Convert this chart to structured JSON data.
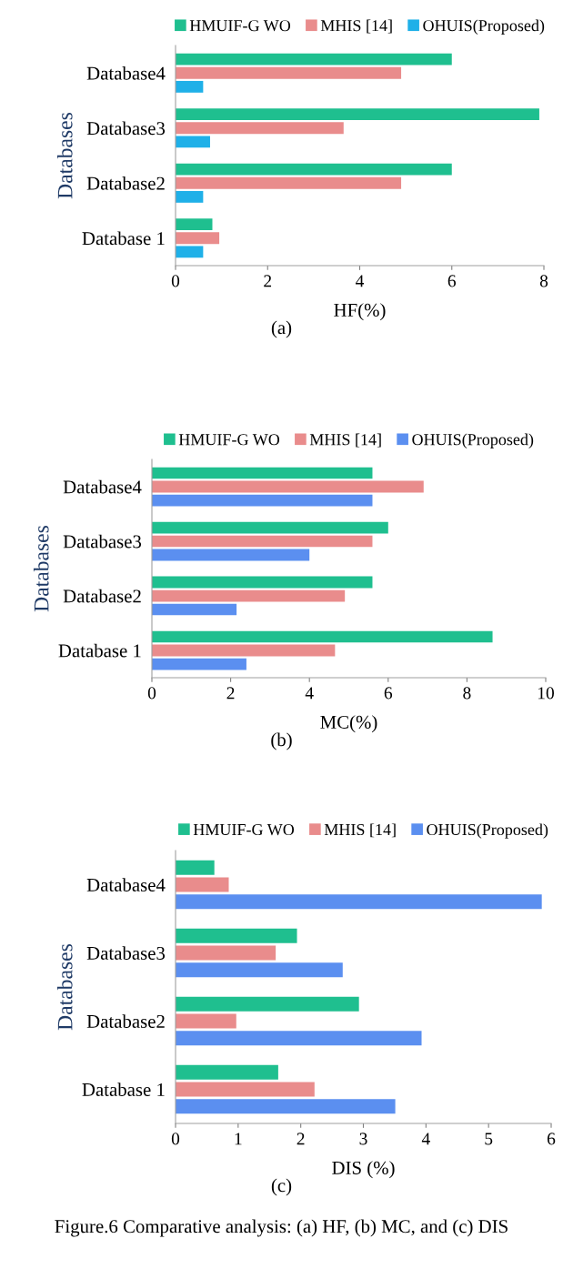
{
  "chart_data": [
    {
      "type": "bar",
      "orientation": "horizontal",
      "xlabel": "HF(%)",
      "ylabel": "Databases",
      "categories": [
        "Database4",
        "Database3",
        "Database2",
        "Database 1"
      ],
      "series": [
        {
          "name": "HMUIF-G WO",
          "color": "#1fbf8f",
          "values": [
            6.0,
            7.9,
            6.0,
            0.8
          ]
        },
        {
          "name": "MHIS [14]",
          "color": "#e98c8c",
          "values": [
            4.9,
            3.65,
            4.9,
            0.95
          ]
        },
        {
          "name": "OHUIS(Proposed)",
          "color": "#1fb0e8",
          "values": [
            0.6,
            0.75,
            0.6,
            0.6
          ]
        }
      ],
      "xlim": [
        0,
        8
      ],
      "xticks": [
        0,
        2,
        4,
        6,
        8
      ],
      "legend": "top",
      "annotations": [
        "(a)"
      ]
    },
    {
      "type": "bar",
      "orientation": "horizontal",
      "xlabel": "MC(%)",
      "ylabel": "Databases",
      "categories": [
        "Database4",
        "Database3",
        "Database2",
        "Database 1"
      ],
      "series": [
        {
          "name": "HMUIF-G WO",
          "color": "#1fbf8f",
          "values": [
            5.6,
            6.0,
            5.6,
            8.65
          ]
        },
        {
          "name": "MHIS [14]",
          "color": "#e98c8c",
          "values": [
            6.9,
            5.6,
            4.9,
            4.65
          ]
        },
        {
          "name": "OHUIS(Proposed)",
          "color": "#5b8ff0",
          "values": [
            5.6,
            4.0,
            2.15,
            2.4
          ]
        }
      ],
      "xlim": [
        0,
        10
      ],
      "xticks": [
        0,
        2,
        4,
        6,
        8,
        10
      ],
      "legend": "top",
      "annotations": [
        "(b)"
      ]
    },
    {
      "type": "bar",
      "orientation": "horizontal",
      "xlabel": "DIS (%)",
      "ylabel": "Databases",
      "categories": [
        "Database4",
        "Database3",
        "Database2",
        "Database 1"
      ],
      "series": [
        {
          "name": "HMUIF-G WO",
          "color": "#1fbf8f",
          "values": [
            0.62,
            1.94,
            2.93,
            1.64
          ]
        },
        {
          "name": "MHIS [14]",
          "color": "#e98c8c",
          "values": [
            0.85,
            1.6,
            0.97,
            2.22
          ]
        },
        {
          "name": "OHUIS(Proposed)",
          "color": "#5b8ff0",
          "values": [
            5.85,
            2.67,
            3.93,
            3.51
          ]
        }
      ],
      "xlim": [
        0,
        6
      ],
      "xticks": [
        0,
        1,
        2,
        3,
        4,
        5,
        6
      ],
      "legend": "top",
      "annotations": [
        "(c)",
        "Figure.6 Comparative analysis: (a) HF, (b) MC, and (c) DIS"
      ]
    }
  ]
}
